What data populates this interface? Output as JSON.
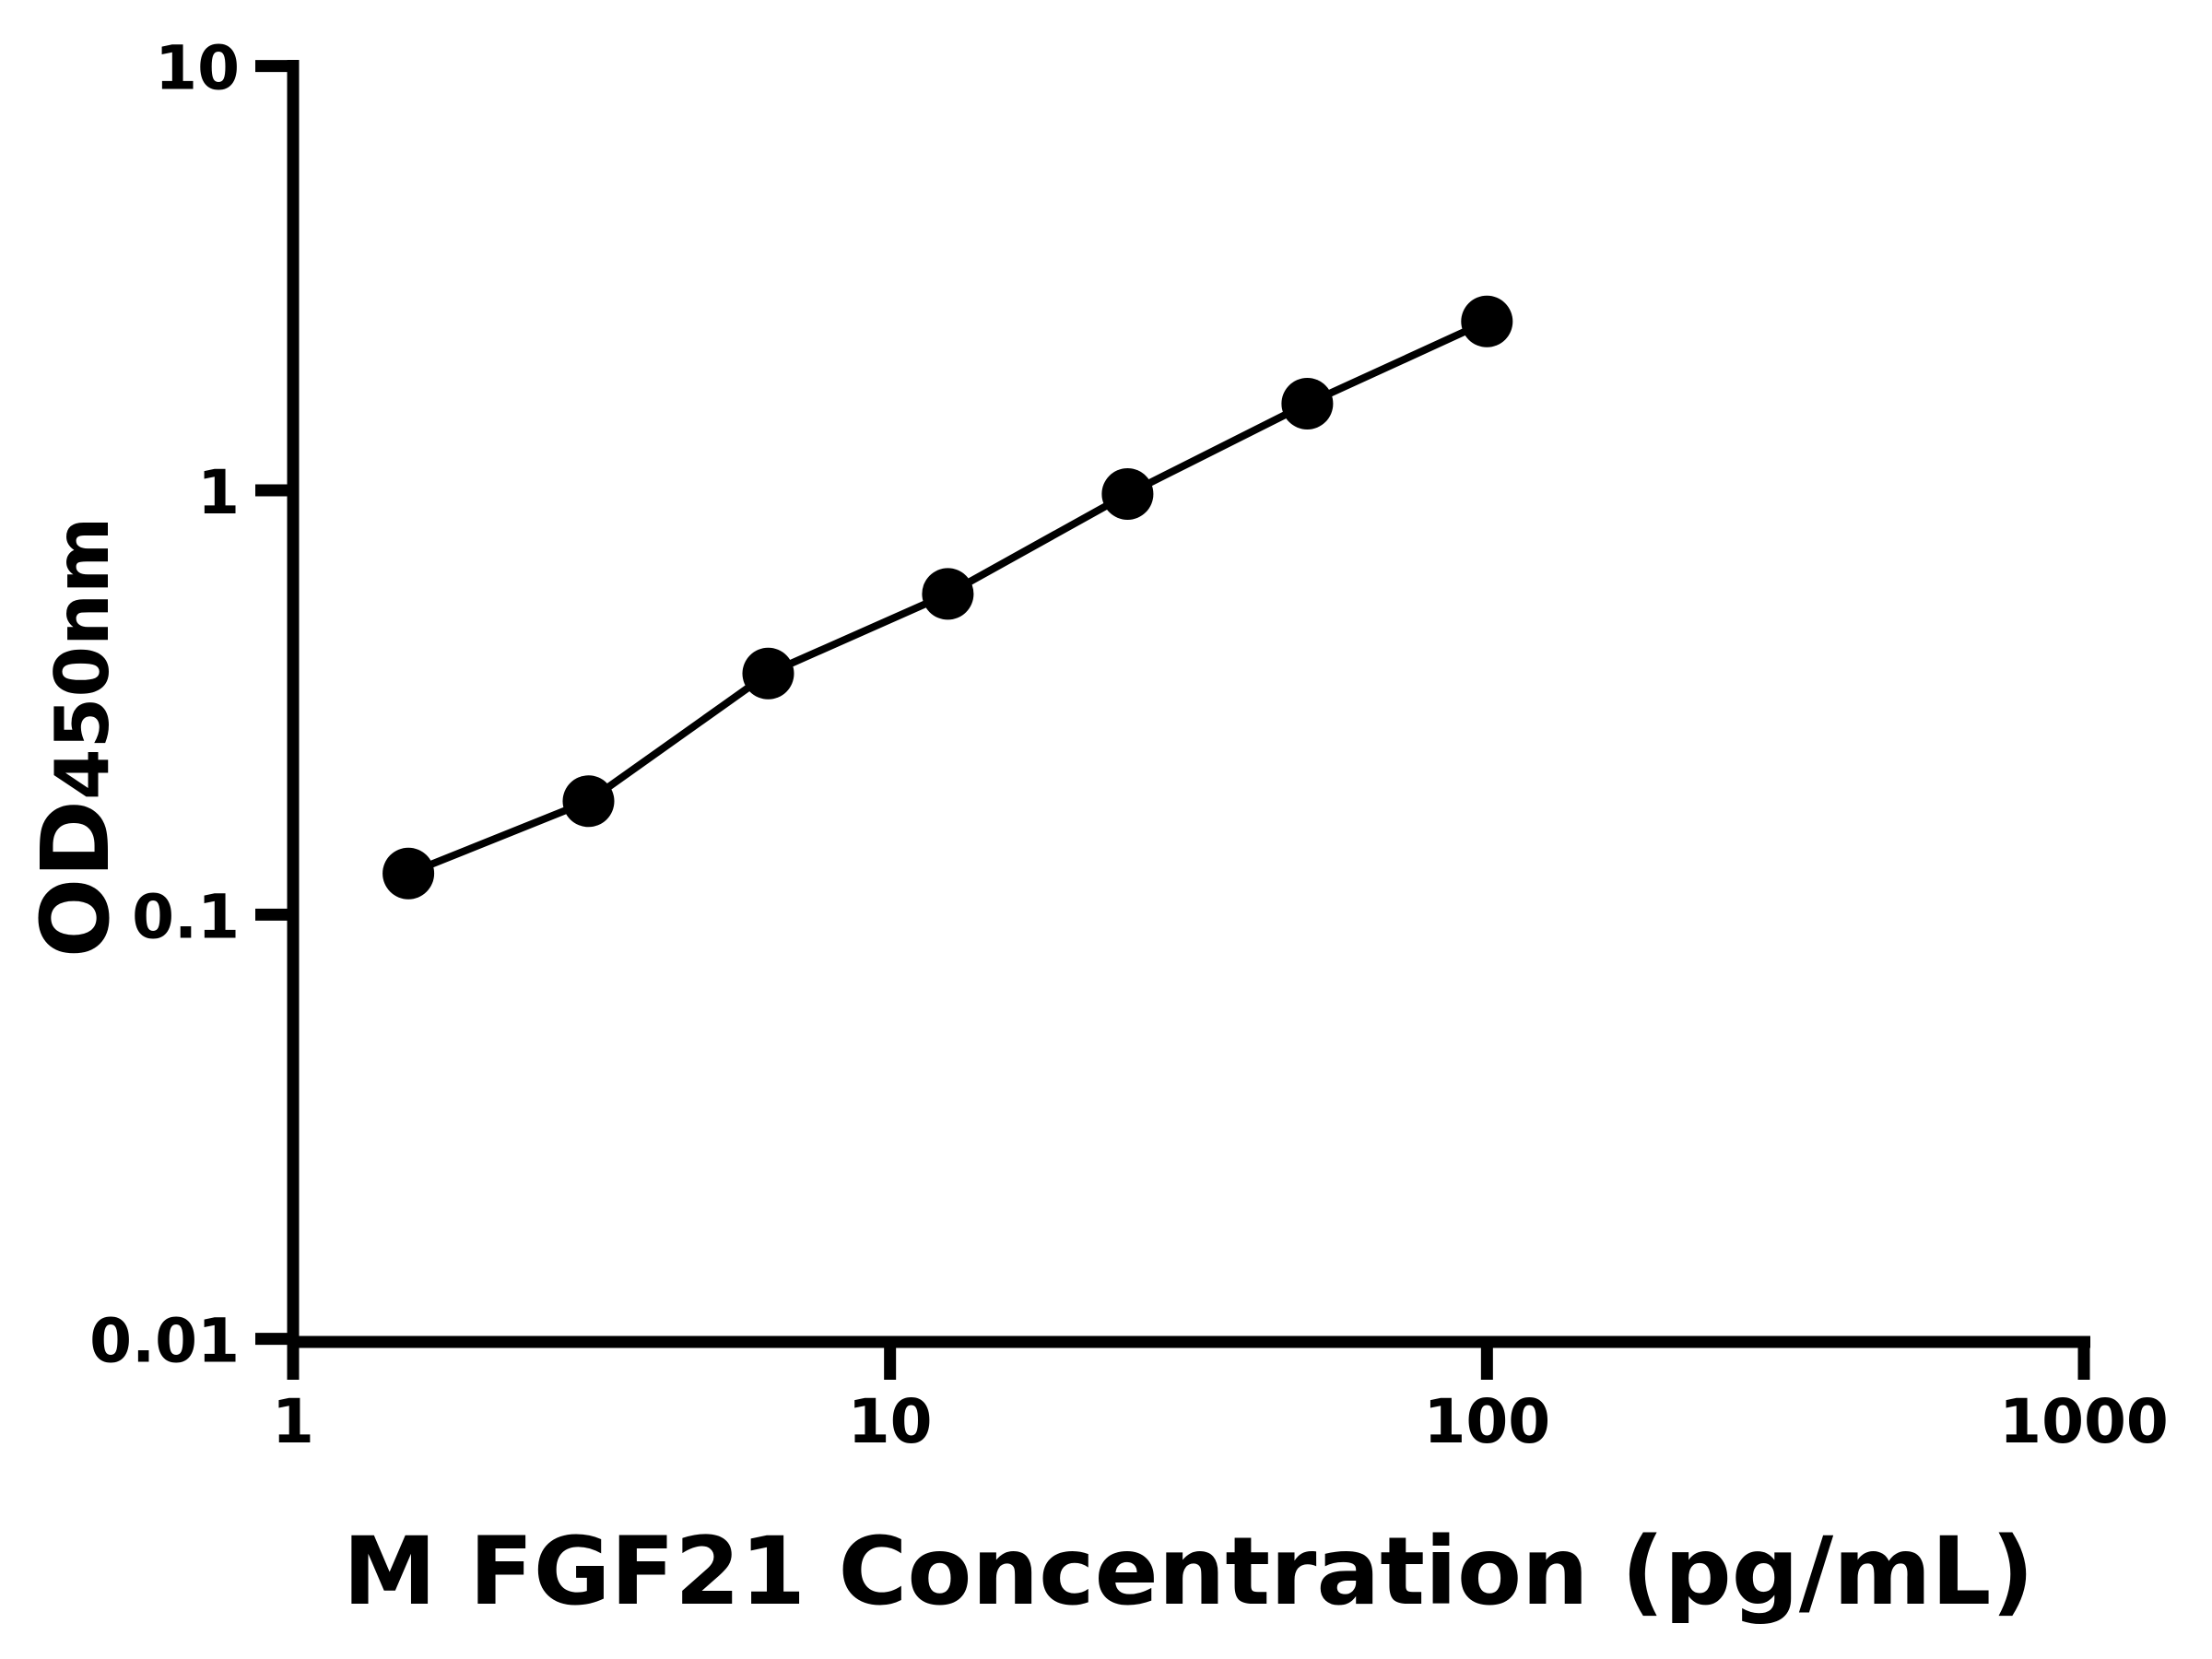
{
  "chart_data": {
    "type": "line",
    "title": "",
    "xlabel": "M FGF21 Concentration (pg/mL)",
    "ylabel": {
      "main": "OD",
      "sub": "450nm"
    },
    "x_scale": "log10",
    "y_scale": "log10",
    "xlim": [
      1,
      1000
    ],
    "ylim": [
      0.01,
      10
    ],
    "grid": false,
    "legend": "none",
    "x_ticks": [
      {
        "value": 1,
        "label": "1"
      },
      {
        "value": 10,
        "label": "10"
      },
      {
        "value": 100,
        "label": "100"
      },
      {
        "value": 1000,
        "label": "1000"
      }
    ],
    "y_ticks": [
      {
        "value": 10,
        "label": "10"
      },
      {
        "value": 1,
        "label": "1"
      },
      {
        "value": 0.1,
        "label": "0.1"
      },
      {
        "value": 0.01,
        "label": "0.01"
      }
    ],
    "series": [
      {
        "marker": "filled-circle",
        "line": "solid",
        "color": "#000000",
        "points": [
          {
            "x": 1.56,
            "y": 0.125
          },
          {
            "x": 3.125,
            "y": 0.185
          },
          {
            "x": 6.25,
            "y": 0.37
          },
          {
            "x": 12.5,
            "y": 0.57
          },
          {
            "x": 25,
            "y": 0.98
          },
          {
            "x": 50,
            "y": 1.6
          },
          {
            "x": 100,
            "y": 2.5
          }
        ]
      }
    ],
    "colors": {
      "axis": "#000000",
      "text": "#000000",
      "marker": "#000000",
      "background": "#ffffff"
    }
  }
}
